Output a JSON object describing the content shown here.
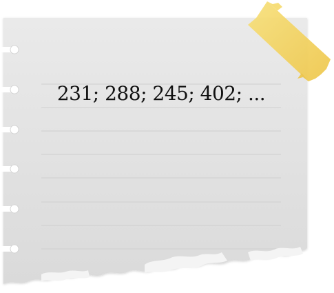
{
  "note": {
    "text": "231; 288; 245; 402; ...",
    "paper_color": "#e4e4e4",
    "line_color": "#cfcfcf",
    "tape_color": "#f0cf5a",
    "hole_color": "#ffffff"
  }
}
